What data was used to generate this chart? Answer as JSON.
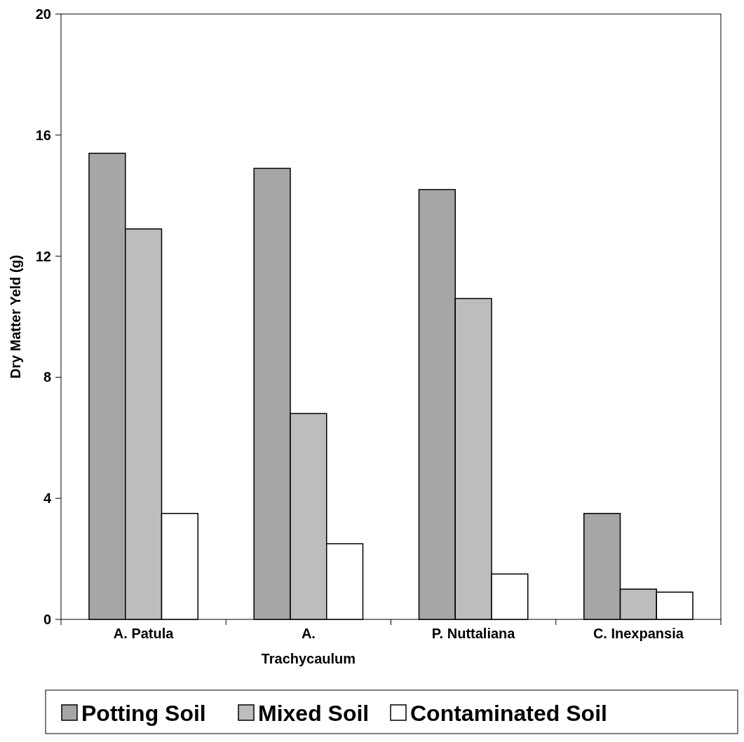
{
  "chart_data": {
    "type": "bar",
    "ylabel": "Dry Matter Yeld (g)",
    "categories": [
      "A. Patula",
      "A. Trachycaulum",
      "P. Nuttaliana",
      "C. Inexpansia"
    ],
    "series": [
      {
        "name": "Potting Soil",
        "color": "#a6a6a6",
        "values": [
          15.4,
          14.9,
          14.2,
          3.5
        ]
      },
      {
        "name": "Mixed Soil",
        "color": "#bdbdbd",
        "values": [
          12.9,
          6.8,
          10.6,
          1.0
        ]
      },
      {
        "name": "Contaminated Soil",
        "color": "#ffffff",
        "values": [
          3.5,
          2.5,
          1.5,
          0.9
        ]
      }
    ],
    "ylim": [
      0,
      20
    ],
    "yticks": [
      0,
      4,
      8,
      12,
      16,
      20
    ],
    "grid": false,
    "legend": "bottom"
  }
}
